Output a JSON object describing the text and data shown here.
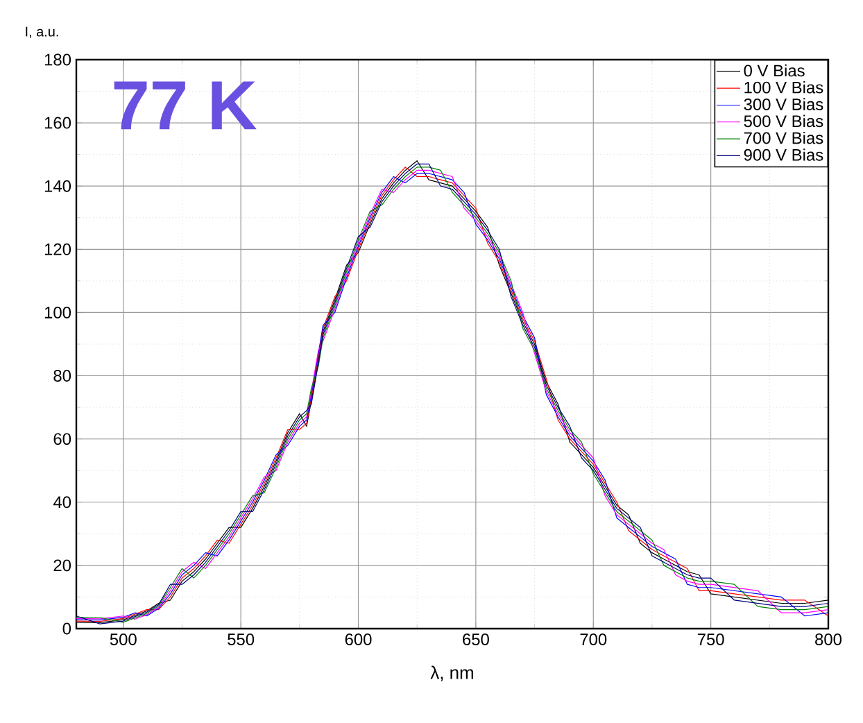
{
  "chart_data": {
    "type": "line",
    "xlabel": "λ, nm",
    "ylabel": "I, a.u.",
    "annotations": [
      "77 K"
    ],
    "x": [
      480,
      490,
      500,
      505,
      510,
      515,
      520,
      525,
      530,
      535,
      540,
      545,
      550,
      555,
      560,
      565,
      570,
      575,
      578,
      580,
      583,
      585,
      590,
      595,
      600,
      605,
      610,
      615,
      620,
      625,
      630,
      635,
      640,
      645,
      650,
      655,
      660,
      665,
      670,
      675,
      680,
      685,
      690,
      695,
      700,
      705,
      710,
      715,
      720,
      725,
      730,
      735,
      740,
      745,
      750,
      760,
      770,
      780,
      790,
      800
    ],
    "series": [
      {
        "name": "0 V Bias",
        "color": "#000000",
        "values": [
          2,
          1.9,
          2.8,
          4.2,
          5.6,
          8,
          9,
          15,
          18,
          22,
          27,
          32,
          32,
          38,
          45,
          53,
          62,
          68,
          64,
          72,
          85,
          94,
          104,
          115,
          119,
          128,
          136,
          141,
          145,
          148,
          142,
          141,
          140,
          136,
          132,
          127,
          115,
          106,
          97,
          90,
          78,
          71,
          59,
          55,
          51,
          45,
          39,
          36,
          27,
          24,
          22,
          20,
          18,
          17,
          11,
          10,
          9,
          8,
          8,
          9
        ]
      },
      {
        "name": "100 V Bias",
        "color": "#ff0000",
        "values": [
          2.4,
          2.3,
          3.2,
          4.6,
          6,
          6,
          10,
          16,
          19,
          23,
          28,
          27,
          33,
          39,
          46,
          54,
          63,
          63,
          65,
          73,
          86,
          95,
          105,
          110,
          120,
          129,
          137,
          142,
          146,
          143,
          143,
          142,
          141,
          137,
          133,
          122,
          116,
          107,
          98,
          91,
          79,
          66,
          60,
          56,
          52,
          46,
          40,
          31,
          28,
          25,
          23,
          21,
          19,
          12,
          12,
          11,
          10,
          9,
          9,
          4
        ]
      },
      {
        "name": "300 V Bias",
        "color": "#0000ff",
        "values": [
          2.8,
          2.7,
          3.6,
          5,
          4,
          6.4,
          11,
          17,
          20,
          24,
          23,
          28,
          34,
          40,
          47,
          55,
          58,
          64,
          66,
          74,
          87,
          96,
          100,
          111,
          121,
          130,
          138,
          143,
          141,
          144,
          144,
          143,
          142,
          138,
          128,
          123,
          117,
          108,
          99,
          92,
          74,
          67,
          61,
          57,
          53,
          47,
          35,
          32,
          29,
          26,
          24,
          22,
          14,
          13,
          13,
          12,
          11,
          10,
          4,
          5
        ]
      },
      {
        "name": "500 V Bias",
        "color": "#ff00ff",
        "values": [
          3.2,
          3.1,
          4,
          3,
          4.4,
          6.8,
          12,
          18,
          21,
          19,
          24,
          29,
          35,
          41,
          48,
          50,
          59,
          65,
          67,
          75,
          88,
          91,
          101,
          112,
          122,
          131,
          139,
          138,
          142,
          145,
          145,
          144,
          143,
          133,
          129,
          124,
          118,
          109,
          100,
          87,
          75,
          68,
          62,
          58,
          54,
          42,
          36,
          33,
          30,
          27,
          25,
          17,
          15,
          14,
          14,
          13,
          12,
          5,
          5,
          6
        ]
      },
      {
        "name": "700 V Bias",
        "color": "#008000",
        "values": [
          3.6,
          3.5,
          2,
          3.4,
          4.8,
          7.2,
          13,
          19,
          16,
          20,
          25,
          30,
          36,
          42,
          43,
          51,
          60,
          66,
          68,
          76,
          83,
          92,
          102,
          113,
          123,
          132,
          134,
          139,
          143,
          146,
          146,
          145,
          138,
          134,
          130,
          125,
          119,
          110,
          95,
          88,
          76,
          69,
          63,
          59,
          49,
          43,
          37,
          34,
          31,
          28,
          20,
          18,
          16,
          15,
          15,
          14,
          7,
          6,
          6,
          7
        ]
      },
      {
        "name": "900 V Bias",
        "color": "#000080",
        "values": [
          4,
          1.5,
          2.4,
          3.8,
          5.2,
          7.6,
          14,
          14,
          17,
          21,
          26,
          31,
          37,
          37,
          44,
          52,
          61,
          67,
          69,
          71,
          84,
          93,
          103,
          114,
          124,
          127,
          135,
          140,
          144,
          147,
          147,
          140,
          139,
          135,
          131,
          126,
          120,
          105,
          96,
          89,
          77,
          70,
          64,
          54,
          50,
          44,
          38,
          35,
          32,
          23,
          21,
          19,
          17,
          16,
          16,
          9,
          8,
          7,
          7,
          8
        ]
      }
    ],
    "xlim": [
      480,
      800
    ],
    "xticks": [
      500,
      550,
      600,
      650,
      700,
      750,
      800
    ],
    "ylim": [
      0,
      180
    ],
    "yticks": [
      0,
      20,
      40,
      60,
      80,
      100,
      120,
      140,
      160,
      180
    ],
    "grid": true,
    "legend": "top right",
    "marker": "none",
    "line_style": "solid"
  }
}
